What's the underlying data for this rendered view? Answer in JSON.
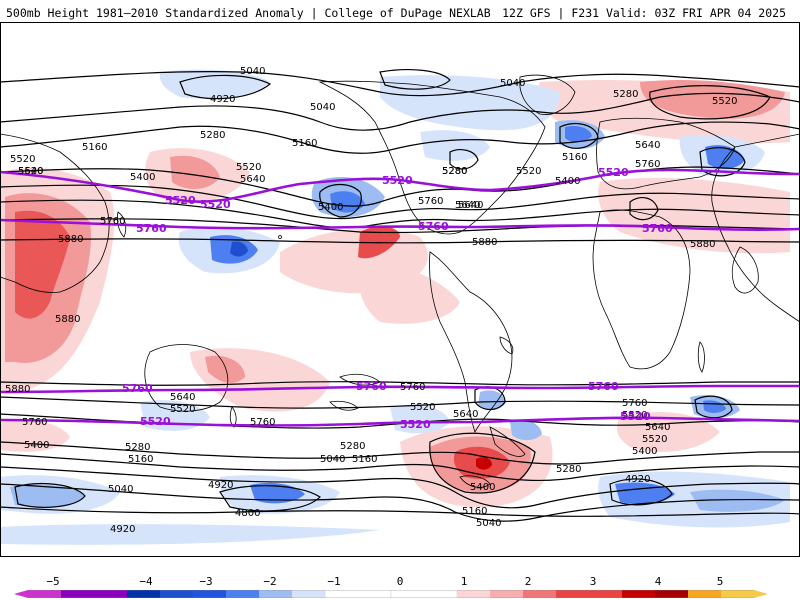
{
  "header": {
    "title": "500mb Height 1981–2010 Standardized Anomaly | College of DuPage NEXLAB",
    "model_info": "12Z GFS | F231 Valid: 03Z FRI APR 04 2025"
  },
  "colorbar": {
    "labels": [
      "−5",
      "−4",
      "−3",
      "−2",
      "−1",
      "0",
      "1",
      "2",
      "3",
      "4",
      "5"
    ],
    "colors": [
      "#cc33cc",
      "#8a00bf",
      "#0033aa",
      "#2255dd",
      "#4d7ff0",
      "#a8c4f5",
      "#dbe8fb",
      "#ffffff",
      "#ffffff",
      "#fbd6d6",
      "#f7aeae",
      "#f07777",
      "#e84444",
      "#c40000",
      "#a50000",
      "#f5a623",
      "#f7c948"
    ]
  },
  "contour_labels": {
    "north": [
      "5040",
      "4920",
      "5040",
      "5040",
      "5280",
      "5520",
      "5160",
      "5280",
      "5160",
      "5520",
      "5280",
      "5160",
      "5640",
      "5400",
      "5760",
      "5640",
      "5400",
      "5520",
      "5640",
      "5520",
      "5400",
      "5760",
      "5640",
      "5760",
      "5880",
      "5880",
      "5880",
      "5280",
      "5520",
      "5640",
      "5880"
    ],
    "south": [
      "5880",
      "5760",
      "5640",
      "5520",
      "5760",
      "5400",
      "5280",
      "5160",
      "5040",
      "4920",
      "4800",
      "4920",
      "5760",
      "5520",
      "5280",
      "5160",
      "5040",
      "5400",
      "5160",
      "5040",
      "5640",
      "5520",
      "5760",
      "5640",
      "5520",
      "5400",
      "4920",
      "5280"
    ],
    "magenta": [
      "5520",
      "5760",
      "5520",
      "5760",
      "5520",
      "5760",
      "5520",
      "5760",
      "5520",
      "5760",
      "5520",
      "5760",
      "5520"
    ]
  },
  "map_colors": {
    "warm_light": "#fbd6d6",
    "warm_mid": "#f29a9a",
    "warm_strong": "#e84b4b",
    "warm_deep": "#c80000",
    "cool_light": "#d6e4fb",
    "cool_mid": "#9dbcf2",
    "cool_strong": "#4d7ff0",
    "cool_deep": "#1f4fcf",
    "contour": "#000000",
    "highlight_contour": "#9b10d8",
    "coastline": "#000000"
  }
}
